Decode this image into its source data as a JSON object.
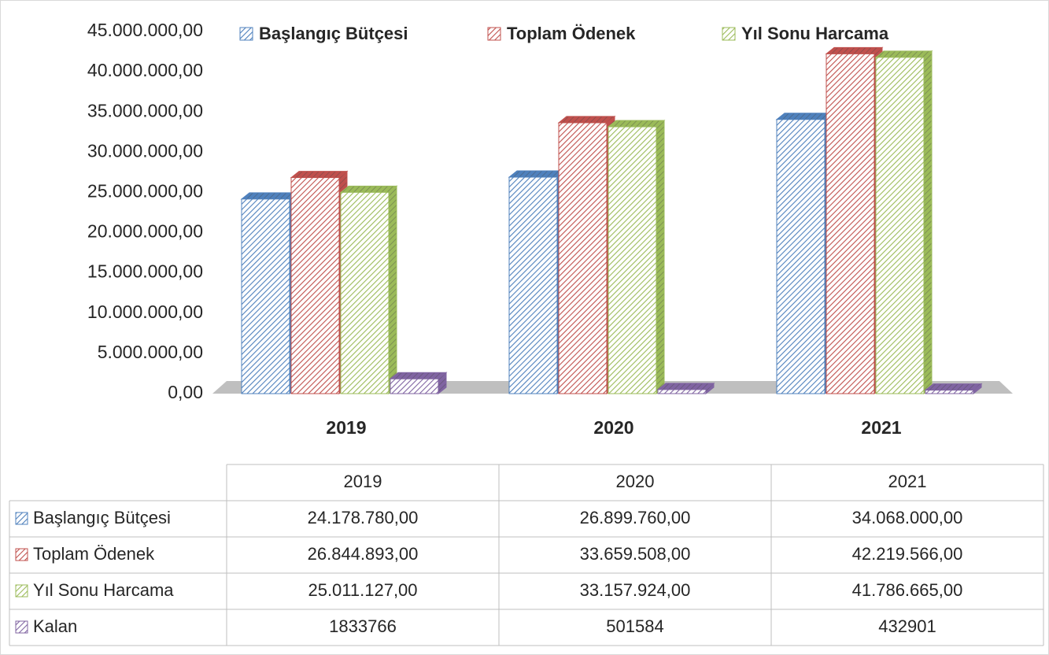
{
  "chart_data": {
    "type": "bar",
    "categories": [
      "2019",
      "2020",
      "2021"
    ],
    "series": [
      {
        "name": "Başlangıç Bütçesi",
        "color": "#4f81bd",
        "values": [
          24178780,
          26899760,
          34068000
        ],
        "value_labels": [
          "24.178.780,00",
          "26.899.760,00",
          "34.068.000,00"
        ]
      },
      {
        "name": "Toplam Ödenek",
        "color": "#c0504d",
        "values": [
          26844893,
          33659508,
          42219566
        ],
        "value_labels": [
          "26.844.893,00",
          "33.659.508,00",
          "42.219.566,00"
        ]
      },
      {
        "name": "Yıl Sonu Harcama",
        "color": "#9bbb59",
        "values": [
          25011127,
          33157924,
          41786665
        ],
        "value_labels": [
          "25.011.127,00",
          "33.157.924,00",
          "41.786.665,00"
        ]
      },
      {
        "name": "Kalan",
        "color": "#8064a2",
        "values": [
          1833766,
          501584,
          432901
        ]
      }
    ],
    "ylim": [
      0,
      45000000
    ],
    "yticks": [
      {
        "value": 0,
        "label": "0,00"
      },
      {
        "value": 5000000,
        "label": "5.000.000,00"
      },
      {
        "value": 10000000,
        "label": "10.000.000,00"
      },
      {
        "value": 15000000,
        "label": "15.000.000,00"
      },
      {
        "value": 20000000,
        "label": "20.000.000,00"
      },
      {
        "value": 25000000,
        "label": "25.000.000,00"
      },
      {
        "value": 30000000,
        "label": "30.000.000,00"
      },
      {
        "value": 35000000,
        "label": "35.000.000,00"
      },
      {
        "value": 40000000,
        "label": "40.000.000,00"
      },
      {
        "value": 45000000,
        "label": "45.000.000,00"
      }
    ],
    "legend": "top",
    "data_table": true
  }
}
